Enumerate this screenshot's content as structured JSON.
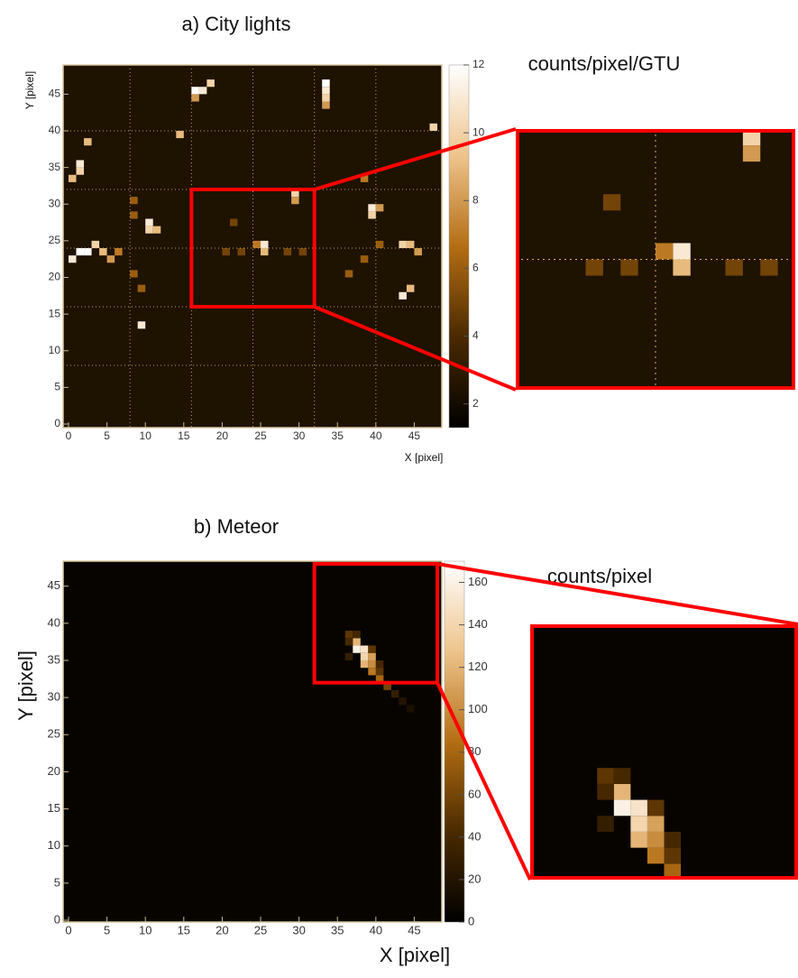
{
  "chart_data": [
    {
      "type": "heatmap",
      "title": "a) City lights",
      "xlabel": "X [pixel]",
      "ylabel": "Y [pixel]",
      "colorbar_label": "counts/pixel/GTU",
      "xlim": [
        0,
        48
      ],
      "ylim": [
        0,
        48
      ],
      "xticks": [
        0,
        5,
        10,
        15,
        20,
        25,
        30,
        35,
        40,
        45
      ],
      "yticks": [
        0,
        5,
        10,
        15,
        20,
        25,
        30,
        35,
        40,
        45
      ],
      "zlim": [
        1.3,
        12
      ],
      "zticks": [
        2,
        4,
        6,
        8,
        10,
        12
      ],
      "grid_lines": [
        8,
        16,
        24,
        32,
        40
      ],
      "colors": [
        "#000000",
        "#4a2a00",
        "#b46e14",
        "#eec48c",
        "#ffffff"
      ],
      "zoom": {
        "xlim": [
          16,
          32
        ],
        "ylim": [
          16,
          32
        ]
      },
      "cells": [
        {
          "x": 16,
          "y": 45,
          "value": 12
        },
        {
          "x": 17,
          "y": 45,
          "value": 11
        },
        {
          "x": 18,
          "y": 46,
          "value": 10
        },
        {
          "x": 16,
          "y": 44,
          "value": 8
        },
        {
          "x": 33,
          "y": 46,
          "value": 12
        },
        {
          "x": 33,
          "y": 45,
          "value": 11
        },
        {
          "x": 33,
          "y": 44,
          "value": 10
        },
        {
          "x": 33,
          "y": 43,
          "value": 8
        },
        {
          "x": 1,
          "y": 35,
          "value": 11
        },
        {
          "x": 1,
          "y": 34,
          "value": 10
        },
        {
          "x": 0,
          "y": 33,
          "value": 9
        },
        {
          "x": 2,
          "y": 38,
          "value": 9
        },
        {
          "x": 10,
          "y": 27,
          "value": 11
        },
        {
          "x": 10,
          "y": 26,
          "value": 10
        },
        {
          "x": 11,
          "y": 26,
          "value": 9
        },
        {
          "x": 1,
          "y": 23,
          "value": 12
        },
        {
          "x": 2,
          "y": 23,
          "value": 12
        },
        {
          "x": 0,
          "y": 22,
          "value": 11
        },
        {
          "x": 3,
          "y": 24,
          "value": 10
        },
        {
          "x": 4,
          "y": 23,
          "value": 9
        },
        {
          "x": 5,
          "y": 22,
          "value": 8
        },
        {
          "x": 6,
          "y": 23,
          "value": 7
        },
        {
          "x": 25,
          "y": 24,
          "value": 11
        },
        {
          "x": 25,
          "y": 23,
          "value": 9
        },
        {
          "x": 24,
          "y": 24,
          "value": 7
        },
        {
          "x": 29,
          "y": 31,
          "value": 10
        },
        {
          "x": 29,
          "y": 30,
          "value": 8
        },
        {
          "x": 39,
          "y": 29,
          "value": 11
        },
        {
          "x": 39,
          "y": 28,
          "value": 10
        },
        {
          "x": 40,
          "y": 29,
          "value": 8
        },
        {
          "x": 43,
          "y": 24,
          "value": 10
        },
        {
          "x": 44,
          "y": 24,
          "value": 9
        },
        {
          "x": 45,
          "y": 23,
          "value": 8
        },
        {
          "x": 43,
          "y": 17,
          "value": 11
        },
        {
          "x": 44,
          "y": 18,
          "value": 9
        },
        {
          "x": 9,
          "y": 13,
          "value": 11
        },
        {
          "x": 14,
          "y": 39,
          "value": 9
        },
        {
          "x": 47,
          "y": 40,
          "value": 10
        },
        {
          "x": 38,
          "y": 33,
          "value": 7
        },
        {
          "x": 8,
          "y": 30,
          "value": 6
        },
        {
          "x": 8,
          "y": 28,
          "value": 6
        },
        {
          "x": 8,
          "y": 20,
          "value": 6
        },
        {
          "x": 9,
          "y": 18,
          "value": 6
        },
        {
          "x": 36,
          "y": 20,
          "value": 6
        },
        {
          "x": 38,
          "y": 22,
          "value": 6
        },
        {
          "x": 40,
          "y": 24,
          "value": 6
        },
        {
          "x": 20,
          "y": 23,
          "value": 5
        },
        {
          "x": 22,
          "y": 23,
          "value": 5
        },
        {
          "x": 28,
          "y": 23,
          "value": 5
        },
        {
          "x": 30,
          "y": 23,
          "value": 5
        },
        {
          "x": 21,
          "y": 27,
          "value": 5
        }
      ]
    },
    {
      "type": "heatmap",
      "title": "b) Meteor",
      "xlabel": "X [pixel]",
      "ylabel": "Y [pixel]",
      "colorbar_label": "counts/pixel",
      "xlim": [
        0,
        48
      ],
      "ylim": [
        0,
        48
      ],
      "xticks": [
        0,
        5,
        10,
        15,
        20,
        25,
        30,
        35,
        40,
        45
      ],
      "yticks": [
        0,
        5,
        10,
        15,
        20,
        25,
        30,
        35,
        40,
        45
      ],
      "zlim": [
        0,
        170
      ],
      "zticks": [
        0,
        20,
        40,
        60,
        80,
        100,
        120,
        140,
        160
      ],
      "colors": [
        "#000000",
        "#4a2a00",
        "#b46e14",
        "#eec48c",
        "#ffffff"
      ],
      "zoom": {
        "xlim": [
          32,
          48
        ],
        "ylim": [
          32,
          48
        ]
      },
      "cells": [
        {
          "x": 37,
          "y": 37,
          "value": 120
        },
        {
          "x": 37,
          "y": 36,
          "value": 160
        },
        {
          "x": 38,
          "y": 36,
          "value": 150
        },
        {
          "x": 38,
          "y": 35,
          "value": 140
        },
        {
          "x": 39,
          "y": 35,
          "value": 110
        },
        {
          "x": 38,
          "y": 34,
          "value": 120
        },
        {
          "x": 39,
          "y": 34,
          "value": 100
        },
        {
          "x": 39,
          "y": 33,
          "value": 90
        },
        {
          "x": 40,
          "y": 32,
          "value": 80
        },
        {
          "x": 41,
          "y": 31,
          "value": 60
        },
        {
          "x": 36,
          "y": 38,
          "value": 50
        },
        {
          "x": 37,
          "y": 38,
          "value": 40
        },
        {
          "x": 36,
          "y": 37,
          "value": 40
        },
        {
          "x": 39,
          "y": 36,
          "value": 50
        },
        {
          "x": 40,
          "y": 34,
          "value": 40
        },
        {
          "x": 42,
          "y": 30,
          "value": 30
        },
        {
          "x": 43,
          "y": 29,
          "value": 20
        },
        {
          "x": 44,
          "y": 28,
          "value": 15
        },
        {
          "x": 40,
          "y": 33,
          "value": 50
        },
        {
          "x": 36,
          "y": 35,
          "value": 30
        }
      ]
    }
  ]
}
